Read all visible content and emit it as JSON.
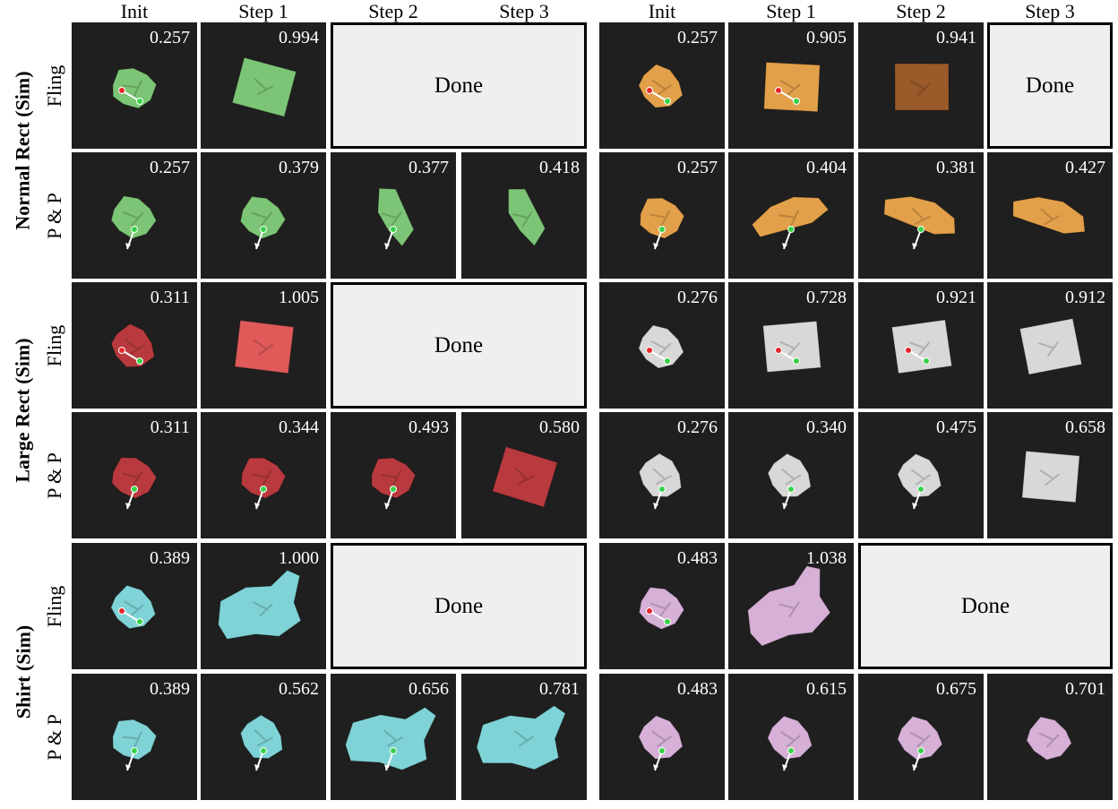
{
  "column_headers": [
    "Init",
    "Step 1",
    "Step 2",
    "Step 3",
    "Init",
    "Step 1",
    "Step 2",
    "Step 3"
  ],
  "row_groups": [
    "Normal Rect (Sim)",
    "Large Rect (Sim)",
    "Shirt (Sim)"
  ],
  "row_labels": [
    "Fling",
    "P & P",
    "Fling",
    "P & P",
    "Fling",
    "P & P"
  ],
  "done_label": "Done",
  "colors": {
    "green_cloth": "#7cc576",
    "orange_cloth": "#e3a04a",
    "brown_cloth": "#9a5a2a",
    "red_cloth": "#e05a5a",
    "dark_red_cloth": "#b83a3e",
    "gray_cloth": "#d8d8d8",
    "cyan_cloth": "#7fd3d6",
    "pink_cloth": "#d6b0d6",
    "pick_point_green": "#37d247",
    "place_point_red": "#e8262a"
  },
  "rows": [
    {
      "left": [
        {
          "score": "0.257",
          "cloth": "green",
          "shape": "crumple",
          "action": "fling"
        },
        {
          "score": "0.994",
          "cloth": "green",
          "shape": "flat"
        },
        {
          "done": true
        }
      ],
      "right": [
        {
          "score": "0.257",
          "cloth": "orange",
          "shape": "crumple",
          "action": "fling"
        },
        {
          "score": "0.905",
          "cloth": "orange",
          "shape": "flat",
          "action": "fling"
        },
        {
          "score": "0.941",
          "cloth": "brown",
          "shape": "flat"
        },
        {
          "done": true
        }
      ]
    },
    {
      "left": [
        {
          "score": "0.257",
          "cloth": "green",
          "shape": "crumple",
          "action": "pick-place"
        },
        {
          "score": "0.379",
          "cloth": "green",
          "shape": "crumple",
          "action": "pick-place"
        },
        {
          "score": "0.377",
          "cloth": "green",
          "shape": "stretched",
          "action": "pick-place"
        },
        {
          "score": "0.418",
          "cloth": "green",
          "shape": "stretched"
        }
      ],
      "right": [
        {
          "score": "0.257",
          "cloth": "orange",
          "shape": "crumple",
          "action": "pick-place"
        },
        {
          "score": "0.404",
          "cloth": "orange",
          "shape": "wide",
          "action": "pick-place"
        },
        {
          "score": "0.381",
          "cloth": "orange",
          "shape": "wide",
          "action": "pick-place"
        },
        {
          "score": "0.427",
          "cloth": "orange",
          "shape": "wide"
        }
      ]
    },
    {
      "left": [
        {
          "score": "0.311",
          "cloth": "dark_red",
          "shape": "crumple",
          "action": "fling"
        },
        {
          "score": "1.005",
          "cloth": "red",
          "shape": "flat"
        },
        {
          "done": true
        }
      ],
      "right": [
        {
          "score": "0.276",
          "cloth": "gray",
          "shape": "crumple",
          "action": "fling"
        },
        {
          "score": "0.728",
          "cloth": "gray",
          "shape": "flat",
          "action": "fling"
        },
        {
          "score": "0.921",
          "cloth": "gray",
          "shape": "flat",
          "action": "fling"
        },
        {
          "score": "0.912",
          "cloth": "gray",
          "shape": "flat"
        }
      ]
    },
    {
      "left": [
        {
          "score": "0.311",
          "cloth": "dark_red",
          "shape": "crumple",
          "action": "pick-place"
        },
        {
          "score": "0.344",
          "cloth": "dark_red",
          "shape": "crumple",
          "action": "pick-place"
        },
        {
          "score": "0.493",
          "cloth": "dark_red",
          "shape": "crumple",
          "action": "pick-place"
        },
        {
          "score": "0.580",
          "cloth": "dark_red",
          "shape": "flat"
        }
      ],
      "right": [
        {
          "score": "0.276",
          "cloth": "gray",
          "shape": "crumple",
          "action": "pick-place"
        },
        {
          "score": "0.340",
          "cloth": "gray",
          "shape": "crumple",
          "action": "pick-place"
        },
        {
          "score": "0.475",
          "cloth": "gray",
          "shape": "crumple",
          "action": "pick-place"
        },
        {
          "score": "0.658",
          "cloth": "gray",
          "shape": "flat"
        }
      ]
    },
    {
      "left": [
        {
          "score": "0.389",
          "cloth": "cyan",
          "shape": "crumple",
          "action": "fling"
        },
        {
          "score": "1.000",
          "cloth": "cyan",
          "shape": "shirt"
        },
        {
          "done": true
        }
      ],
      "right": [
        {
          "score": "0.483",
          "cloth": "pink",
          "shape": "crumple",
          "action": "fling"
        },
        {
          "score": "1.038",
          "cloth": "pink",
          "shape": "shirt"
        },
        {
          "done": true
        }
      ]
    },
    {
      "left": [
        {
          "score": "0.389",
          "cloth": "cyan",
          "shape": "crumple",
          "action": "pick-place"
        },
        {
          "score": "0.562",
          "cloth": "cyan",
          "shape": "crumple",
          "action": "pick-place"
        },
        {
          "score": "0.656",
          "cloth": "cyan",
          "shape": "shirt",
          "action": "pick-place"
        },
        {
          "score": "0.781",
          "cloth": "cyan",
          "shape": "shirt"
        }
      ],
      "right": [
        {
          "score": "0.483",
          "cloth": "pink",
          "shape": "crumple",
          "action": "pick-place"
        },
        {
          "score": "0.615",
          "cloth": "pink",
          "shape": "crumple",
          "action": "pick-place"
        },
        {
          "score": "0.675",
          "cloth": "pink",
          "shape": "crumple",
          "action": "pick-place"
        },
        {
          "score": "0.701",
          "cloth": "pink",
          "shape": "crumple"
        }
      ]
    }
  ]
}
